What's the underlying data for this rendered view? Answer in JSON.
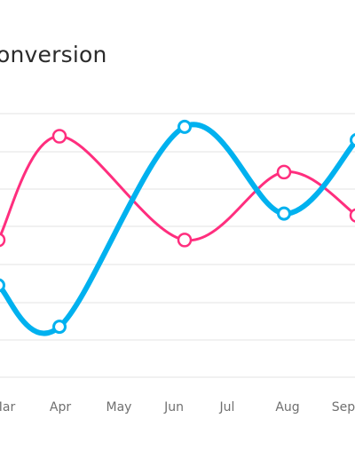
{
  "chart_data": {
    "type": "line",
    "title": "onversion",
    "categories": [
      "Mar",
      "Apr",
      "May",
      "Jun",
      "Jul",
      "Aug",
      "Sep"
    ],
    "visible_x_labels": [
      "Mar",
      "Apr",
      "May",
      "Jun",
      "Jul",
      "Aug",
      "Sep"
    ],
    "grid": "horizontal",
    "legend": "none",
    "series": [
      {
        "color": "#ff2e7e",
        "markers": "hollow circles",
        "points": [
          {
            "x": "Mar",
            "y": 2.65
          },
          {
            "x": "Apr",
            "y": 5.4
          },
          {
            "x": "Jun",
            "y": 2.65
          },
          {
            "x": "Aug",
            "y": 4.45
          },
          {
            "x": "Sep",
            "y": 3.3
          }
        ]
      },
      {
        "color": "#00b1ef",
        "markers": "hollow circles",
        "points": [
          {
            "x": "Mar",
            "y": 1.45
          },
          {
            "x": "Apr",
            "y": 0.35
          },
          {
            "x": "Jun",
            "y": 5.65
          },
          {
            "x": "Aug",
            "y": 3.35
          },
          {
            "x": "Sep",
            "y": 5.3
          }
        ]
      }
    ]
  }
}
